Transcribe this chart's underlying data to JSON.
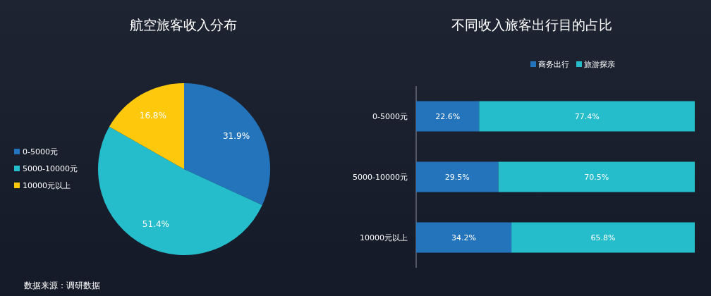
{
  "chart_data": [
    {
      "type": "pie",
      "title": "航空旅客收入分布",
      "categories": [
        "0-5000元",
        "5000-10000元",
        "10000元以上"
      ],
      "values": [
        31.9,
        51.4,
        16.8
      ],
      "colors": [
        "#2474bb",
        "#25bccb",
        "#fec80c"
      ],
      "value_labels": [
        "31.9%",
        "51.4%",
        "16.8%"
      ],
      "legend": "left",
      "annotations": [
        "数据来源：调研数据"
      ]
    },
    {
      "type": "bar",
      "orientation": "horizontal",
      "stacked": true,
      "title": "不同收入旅客出行目的占比",
      "categories": [
        "0-5000元",
        "5000-10000元",
        "10000元以上"
      ],
      "xlim": [
        0,
        100
      ],
      "tick_labels": "y",
      "legend": "top",
      "series": [
        {
          "name": "商务出行",
          "color": "#2474bb",
          "values": [
            22.6,
            29.5,
            34.2
          ],
          "value_labels": [
            "22.6%",
            "29.5%",
            "34.2%"
          ]
        },
        {
          "name": "旅游探亲",
          "color": "#25bccb",
          "values": [
            77.4,
            70.5,
            65.8
          ],
          "value_labels": [
            "77.4%",
            "70.5%",
            "65.8%"
          ]
        }
      ]
    }
  ]
}
